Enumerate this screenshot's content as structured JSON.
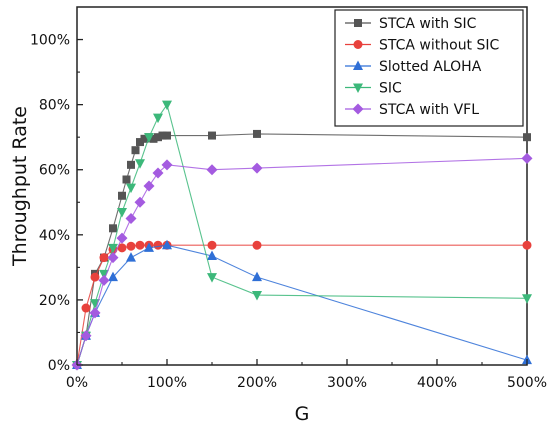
{
  "chart_data": {
    "type": "line",
    "xlabel": "G",
    "ylabel": "Throughput Rate",
    "xlim": [
      0,
      5.0
    ],
    "ylim": [
      0,
      1.1
    ],
    "x_ticks": [
      0,
      1,
      2,
      3,
      4,
      5
    ],
    "x_tick_labels": [
      "0%",
      "100%",
      "200%",
      "300%",
      "400%",
      "500%"
    ],
    "y_ticks": [
      0,
      0.2,
      0.4,
      0.6,
      0.8,
      1.0
    ],
    "y_tick_labels": [
      "0%",
      "20%",
      "40%",
      "60%",
      "80%",
      "100%"
    ],
    "legend_position": "top-right",
    "series": [
      {
        "name": "STCA with SIC",
        "color": "#555555",
        "marker": "square",
        "x": [
          0,
          0.1,
          0.2,
          0.3,
          0.4,
          0.5,
          0.55,
          0.6,
          0.65,
          0.7,
          0.75,
          0.8,
          0.85,
          0.9,
          0.95,
          1.0,
          1.5,
          2.0,
          5.0
        ],
        "y": [
          0,
          0.09,
          0.28,
          0.33,
          0.42,
          0.52,
          0.57,
          0.615,
          0.66,
          0.685,
          0.695,
          0.7,
          0.695,
          0.7,
          0.705,
          0.705,
          0.705,
          0.71,
          0.7
        ]
      },
      {
        "name": "STCA without SIC",
        "color": "#e8413c",
        "marker": "circle",
        "x": [
          0,
          0.1,
          0.2,
          0.3,
          0.4,
          0.5,
          0.6,
          0.7,
          0.8,
          0.9,
          1.0,
          1.5,
          2.0,
          5.0
        ],
        "y": [
          0,
          0.175,
          0.27,
          0.33,
          0.355,
          0.36,
          0.365,
          0.368,
          0.368,
          0.368,
          0.368,
          0.368,
          0.368,
          0.368
        ]
      },
      {
        "name": "Slotted ALOHA",
        "color": "#2f6fd6",
        "marker": "triangle-up",
        "x": [
          0,
          0.1,
          0.2,
          0.4,
          0.6,
          0.8,
          1.0,
          1.5,
          2.0,
          5.0
        ],
        "y": [
          0,
          0.09,
          0.16,
          0.27,
          0.33,
          0.36,
          0.368,
          0.335,
          0.27,
          0.015
        ]
      },
      {
        "name": "SIC",
        "color": "#3cb87a",
        "marker": "triangle-down",
        "x": [
          0,
          0.1,
          0.2,
          0.3,
          0.4,
          0.5,
          0.6,
          0.7,
          0.8,
          0.9,
          1.0,
          1.5,
          2.0,
          5.0
        ],
        "y": [
          0,
          0.09,
          0.19,
          0.28,
          0.36,
          0.47,
          0.545,
          0.62,
          0.7,
          0.76,
          0.8,
          0.27,
          0.215,
          0.205
        ]
      },
      {
        "name": "STCA with VFL",
        "color": "#a45be0",
        "marker": "diamond",
        "x": [
          0,
          0.1,
          0.2,
          0.3,
          0.4,
          0.5,
          0.6,
          0.7,
          0.8,
          0.9,
          1.0,
          1.5,
          2.0,
          5.0
        ],
        "y": [
          0,
          0.09,
          0.16,
          0.26,
          0.33,
          0.39,
          0.45,
          0.5,
          0.55,
          0.59,
          0.615,
          0.6,
          0.605,
          0.635
        ]
      }
    ]
  }
}
